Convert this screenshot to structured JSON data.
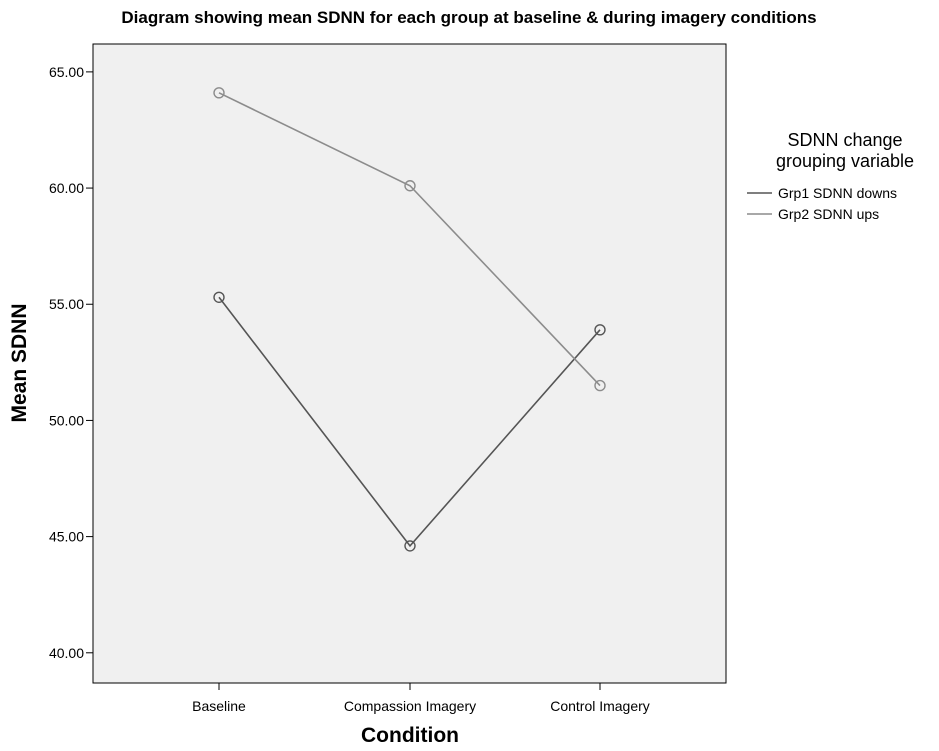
{
  "chart_data": {
    "type": "line",
    "title": "Diagram showing mean SDNN for each group at baseline & during imagery conditions",
    "xlabel": "Condition",
    "ylabel": "Mean SDNN",
    "categories": [
      "Baseline",
      "Compassion Imagery",
      "Control Imagery"
    ],
    "ylim": [
      38.7,
      66.2
    ],
    "yticks": [
      40,
      45,
      50,
      55,
      60,
      65
    ],
    "ytick_labels": [
      "40.00",
      "45.00",
      "50.00",
      "55.00",
      "60.00",
      "65.00"
    ],
    "grid": false,
    "legend": {
      "title_lines": [
        "SDNN change",
        "grouping variable"
      ],
      "placement": "right"
    },
    "series": [
      {
        "name": "Grp1 SDNN downs",
        "values": [
          55.3,
          44.6,
          53.9
        ],
        "color": "#555555"
      },
      {
        "name": "Grp2 SDNN ups",
        "values": [
          64.1,
          60.1,
          51.5
        ],
        "color": "#8c8c8c"
      }
    ]
  }
}
